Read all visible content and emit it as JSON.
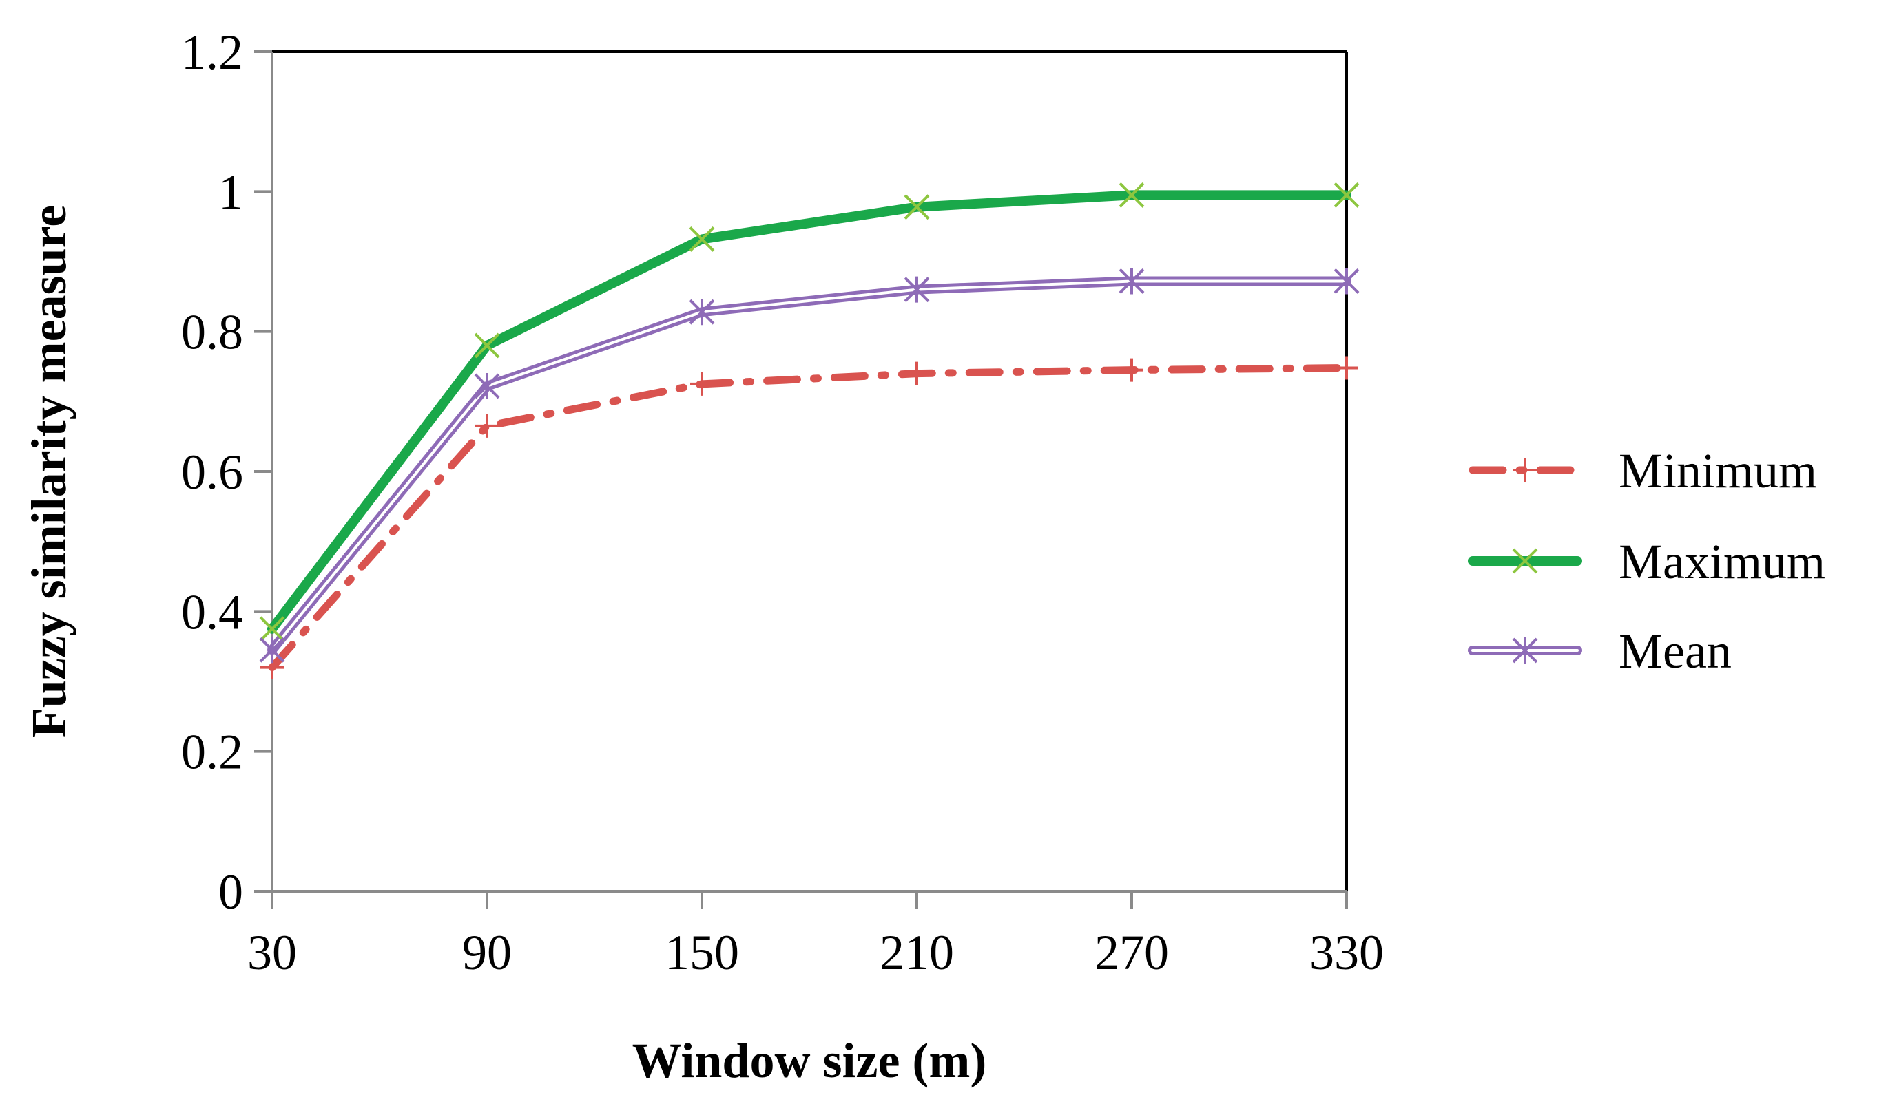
{
  "chart_data": {
    "type": "line",
    "title": "",
    "xlabel": "Window size (m)",
    "ylabel": "Fuzzy similarity measure",
    "x": [
      30,
      90,
      150,
      210,
      270,
      330
    ],
    "x_tick_labels": [
      "30",
      "90",
      "150",
      "210",
      "270",
      "330"
    ],
    "y_tick_labels": [
      "0",
      "0.2",
      "0.4",
      "0.6",
      "0.8",
      "1",
      "1.2"
    ],
    "y_ticks": [
      0,
      0.2,
      0.4,
      0.6,
      0.8,
      1.0,
      1.2
    ],
    "xlim": [
      30,
      330
    ],
    "ylim": [
      0,
      1.2
    ],
    "grid": false,
    "legend_position": "right",
    "series": [
      {
        "name": "Minimum",
        "values": [
          0.32,
          0.665,
          0.725,
          0.74,
          0.745,
          0.748
        ],
        "color": "#d9534f",
        "line_style": "dash-dot",
        "marker": "plus"
      },
      {
        "name": "Maximum",
        "values": [
          0.375,
          0.78,
          0.932,
          0.978,
          0.995,
          0.995
        ],
        "color": "#1aa84a",
        "marker_color": "#8dc63f",
        "line_style": "solid",
        "marker": "x"
      },
      {
        "name": "Mean",
        "values": [
          0.345,
          0.722,
          0.828,
          0.86,
          0.872,
          0.872
        ],
        "color": "#8e6bb7",
        "line_style": "double",
        "marker": "asterisk"
      }
    ]
  }
}
